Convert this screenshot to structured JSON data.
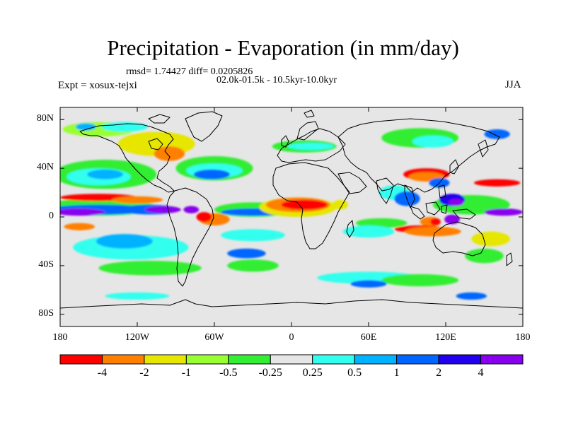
{
  "title": "Precipitation - Evaporation (in mm/day)",
  "stats": {
    "rmsd_text": "rmsd= 1.74427  diff= 0.0205826"
  },
  "experiment": "Expt = xosux-tejxi",
  "runs": "02.0k-01.5k - 10.5kyr-10.0kyr",
  "season": "JJA",
  "axes": {
    "lat_ticks": [
      {
        "label": "80N",
        "lat": 80
      },
      {
        "label": "40N",
        "lat": 40
      },
      {
        "label": "0",
        "lat": 0
      },
      {
        "label": "40S",
        "lat": -40
      },
      {
        "label": "80S",
        "lat": -80
      }
    ],
    "lon_ticks": [
      {
        "label": "180",
        "lon": -180
      },
      {
        "label": "120W",
        "lon": -120
      },
      {
        "label": "60W",
        "lon": -60
      },
      {
        "label": "0",
        "lon": 0
      },
      {
        "label": "60E",
        "lon": 60
      },
      {
        "label": "120E",
        "lon": 120
      },
      {
        "label": "180",
        "lon": 180
      }
    ]
  },
  "colorbar": {
    "colors": [
      "#ff0000",
      "#ff8000",
      "#e6e600",
      "#99ff33",
      "#33ee33",
      "#e6e6e6",
      "#33ffee",
      "#00b2ff",
      "#0066ff",
      "#2200ee",
      "#8800ee"
    ],
    "labels": [
      "-4",
      "-2",
      "-1",
      "-0.5",
      "-0.25",
      "0.25",
      "0.5",
      "1",
      "2",
      "4"
    ]
  },
  "chart_data": {
    "type": "heatmap",
    "variable": "Precipitation - Evaporation",
    "units": "mm/day",
    "season": "JJA",
    "x_range": [
      -180,
      180
    ],
    "y_range": [
      -90,
      90
    ],
    "background_level": 0,
    "features": [
      {
        "name": "north-pacific-green",
        "lon": -145,
        "lat": 35,
        "rlon": 40,
        "rlat": 12,
        "level": 4
      },
      {
        "name": "north-pacific-cyan",
        "lon": -150,
        "lat": 33,
        "rlon": 25,
        "rlat": 7,
        "level": 6
      },
      {
        "name": "north-pacific-blue",
        "lon": -145,
        "lat": 35,
        "rlon": 14,
        "rlat": 4,
        "level": 7
      },
      {
        "name": "pacific-itcz-green",
        "lon": -150,
        "lat": 8,
        "rlon": 45,
        "rlat": 7,
        "level": 4
      },
      {
        "name": "pacific-itcz-blue",
        "lon": -150,
        "lat": 6,
        "rlon": 40,
        "rlat": 4,
        "level": 8
      },
      {
        "name": "pacific-itcz-purple",
        "lon": -165,
        "lat": 4,
        "rlon": 20,
        "rlat": 3,
        "level": 10
      },
      {
        "name": "east-pacific-blue",
        "lon": -110,
        "lat": 6,
        "rlon": 22,
        "rlat": 4,
        "level": 8
      },
      {
        "name": "east-pacific-purple",
        "lon": -100,
        "lat": 6,
        "rlon": 14,
        "rlat": 3,
        "level": 10
      },
      {
        "name": "pacific-red",
        "lon": -150,
        "lat": 16,
        "rlon": 30,
        "rlat": 3,
        "level": 0
      },
      {
        "name": "pacific-orange",
        "lon": -120,
        "lat": 14,
        "rlon": 20,
        "rlat": 3,
        "level": 1
      },
      {
        "name": "south-pacific-cyan",
        "lon": -125,
        "lat": -25,
        "rlon": 45,
        "rlat": 10,
        "level": 6
      },
      {
        "name": "south-pacific-blue",
        "lon": -130,
        "lat": -20,
        "rlon": 22,
        "rlat": 6,
        "level": 7
      },
      {
        "name": "south-pacific-orange",
        "lon": -165,
        "lat": -8,
        "rlon": 12,
        "rlat": 3,
        "level": 1
      },
      {
        "name": "south-pacific-green",
        "lon": -110,
        "lat": -42,
        "rlon": 40,
        "rlat": 6,
        "level": 4
      },
      {
        "name": "north-america-yellow",
        "lon": -105,
        "lat": 60,
        "rlon": 30,
        "rlat": 10,
        "level": 2
      },
      {
        "name": "us-orange",
        "lon": -95,
        "lat": 52,
        "rlon": 12,
        "rlat": 6,
        "level": 1
      },
      {
        "name": "arctic-green",
        "lon": -150,
        "lat": 72,
        "rlon": 28,
        "rlat": 6,
        "level": 3
      },
      {
        "name": "arctic-cyan",
        "lon": -130,
        "lat": 74,
        "rlon": 18,
        "rlat": 4,
        "level": 6
      },
      {
        "name": "arctic-blue",
        "lon": -160,
        "lat": 74,
        "rlon": 8,
        "rlat": 3,
        "level": 7
      },
      {
        "name": "gulf-stream-green",
        "lon": -60,
        "lat": 40,
        "rlon": 30,
        "rlat": 10,
        "level": 4
      },
      {
        "name": "gulf-stream-cyan",
        "lon": -60,
        "lat": 38,
        "rlon": 22,
        "rlat": 6,
        "level": 6
      },
      {
        "name": "gulf-stream-blue",
        "lon": -62,
        "lat": 35,
        "rlon": 14,
        "rlat": 4,
        "level": 8
      },
      {
        "name": "atlantic-itcz-green",
        "lon": -30,
        "lat": 6,
        "rlon": 30,
        "rlat": 6,
        "level": 4
      },
      {
        "name": "atlantic-itcz-blue",
        "lon": -30,
        "lat": 4,
        "rlon": 25,
        "rlat": 3,
        "level": 8
      },
      {
        "name": "amazon-orange",
        "lon": -60,
        "lat": -2,
        "rlon": 12,
        "rlat": 5,
        "level": 1
      },
      {
        "name": "amazon-red",
        "lon": -68,
        "lat": 0,
        "rlon": 6,
        "rlat": 4,
        "level": 0
      },
      {
        "name": "amazon-purple",
        "lon": -78,
        "lat": 6,
        "rlon": 6,
        "rlat": 3,
        "level": 10
      },
      {
        "name": "south-atlantic-cyan",
        "lon": -30,
        "lat": -15,
        "rlon": 25,
        "rlat": 5,
        "level": 6
      },
      {
        "name": "south-atlantic-blue",
        "lon": -35,
        "lat": -30,
        "rlon": 15,
        "rlat": 4,
        "level": 8
      },
      {
        "name": "south-atlantic-green",
        "lon": -30,
        "lat": -40,
        "rlon": 20,
        "rlat": 5,
        "level": 4
      },
      {
        "name": "sahel-yellow",
        "lon": 5,
        "lat": 8,
        "rlon": 30,
        "rlat": 8,
        "level": 2
      },
      {
        "name": "sahel-orange",
        "lon": 5,
        "lat": 10,
        "rlon": 25,
        "rlat": 6,
        "level": 1
      },
      {
        "name": "sahel-red",
        "lon": 10,
        "lat": 10,
        "rlon": 18,
        "rlat": 4,
        "level": 0
      },
      {
        "name": "horn-africa-yellow",
        "lon": 38,
        "lat": 10,
        "rlon": 6,
        "rlat": 4,
        "level": 2
      },
      {
        "name": "europe-green",
        "lon": 10,
        "lat": 58,
        "rlon": 25,
        "rlat": 5,
        "level": 4
      },
      {
        "name": "europe-cyan",
        "lon": 15,
        "lat": 58,
        "rlon": 18,
        "rlat": 3,
        "level": 6
      },
      {
        "name": "siberia-green",
        "lon": 100,
        "lat": 65,
        "rlon": 30,
        "rlat": 8,
        "level": 4
      },
      {
        "name": "siberia-cyan",
        "lon": 110,
        "lat": 62,
        "rlon": 16,
        "rlat": 5,
        "level": 6
      },
      {
        "name": "siberia-blue",
        "lon": 160,
        "lat": 68,
        "rlon": 10,
        "rlat": 4,
        "level": 8
      },
      {
        "name": "east-asia-red",
        "lon": 105,
        "lat": 35,
        "rlon": 18,
        "rlat": 5,
        "level": 0
      },
      {
        "name": "east-asia-orange",
        "lon": 105,
        "lat": 33,
        "rlon": 14,
        "rlat": 4,
        "level": 1
      },
      {
        "name": "china-blue",
        "lon": 115,
        "lat": 28,
        "rlon": 8,
        "rlat": 4,
        "level": 8
      },
      {
        "name": "nw-pacific-red",
        "lon": 160,
        "lat": 28,
        "rlon": 18,
        "rlat": 3,
        "level": 0
      },
      {
        "name": "india-cyan",
        "lon": 80,
        "lat": 20,
        "rlon": 12,
        "rlat": 6,
        "level": 6
      },
      {
        "name": "bay-of-bengal-blue",
        "lon": 90,
        "lat": 15,
        "rlon": 10,
        "rlat": 6,
        "level": 8
      },
      {
        "name": "warm-pool-green",
        "lon": 140,
        "lat": 10,
        "rlon": 30,
        "rlat": 8,
        "level": 4
      },
      {
        "name": "philippine-blue",
        "lon": 125,
        "lat": 14,
        "rlon": 10,
        "rlat": 5,
        "level": 9
      },
      {
        "name": "philippine-purple",
        "lon": 128,
        "lat": 12,
        "rlon": 6,
        "rlat": 3,
        "level": 10
      },
      {
        "name": "w-pacific-purple",
        "lon": 165,
        "lat": 4,
        "rlon": 15,
        "rlat": 3,
        "level": 10
      },
      {
        "name": "maritime-orange",
        "lon": 108,
        "lat": -4,
        "rlon": 8,
        "rlat": 4,
        "level": 1
      },
      {
        "name": "maritime-red",
        "lon": 112,
        "lat": -4,
        "rlon": 4,
        "rlat": 3,
        "level": 0
      },
      {
        "name": "indonesia-purple",
        "lon": 125,
        "lat": -2,
        "rlon": 6,
        "rlat": 4,
        "level": 10
      },
      {
        "name": "indian-ocean-red",
        "lon": 100,
        "lat": -10,
        "rlon": 20,
        "rlat": 3,
        "level": 0
      },
      {
        "name": "indian-ocean-orange",
        "lon": 110,
        "lat": -12,
        "rlon": 22,
        "rlat": 4,
        "level": 1
      },
      {
        "name": "indian-ocean-green",
        "lon": 70,
        "lat": -5,
        "rlon": 20,
        "rlat": 4,
        "level": 4
      },
      {
        "name": "indian-ocean-cyan",
        "lon": 60,
        "lat": -12,
        "rlon": 20,
        "rlat": 5,
        "level": 6
      },
      {
        "name": "coral-sea-yellow",
        "lon": 155,
        "lat": -18,
        "rlon": 15,
        "rlat": 6,
        "level": 2
      },
      {
        "name": "tasman-green",
        "lon": 150,
        "lat": -32,
        "rlon": 15,
        "rlat": 6,
        "level": 4
      },
      {
        "name": "southern-ocean-cyan",
        "lon": 60,
        "lat": -50,
        "rlon": 40,
        "rlat": 5,
        "level": 6
      },
      {
        "name": "southern-ocean-green",
        "lon": 100,
        "lat": -52,
        "rlon": 30,
        "rlat": 5,
        "level": 4
      },
      {
        "name": "southern-ocean-blue",
        "lon": 60,
        "lat": -55,
        "rlon": 14,
        "rlat": 3,
        "level": 8
      },
      {
        "name": "antarctic-cyan",
        "lon": -120,
        "lat": -65,
        "rlon": 25,
        "rlat": 3,
        "level": 6
      },
      {
        "name": "antarctic-blue",
        "lon": 140,
        "lat": -65,
        "rlon": 12,
        "rlat": 3,
        "level": 8
      }
    ]
  }
}
